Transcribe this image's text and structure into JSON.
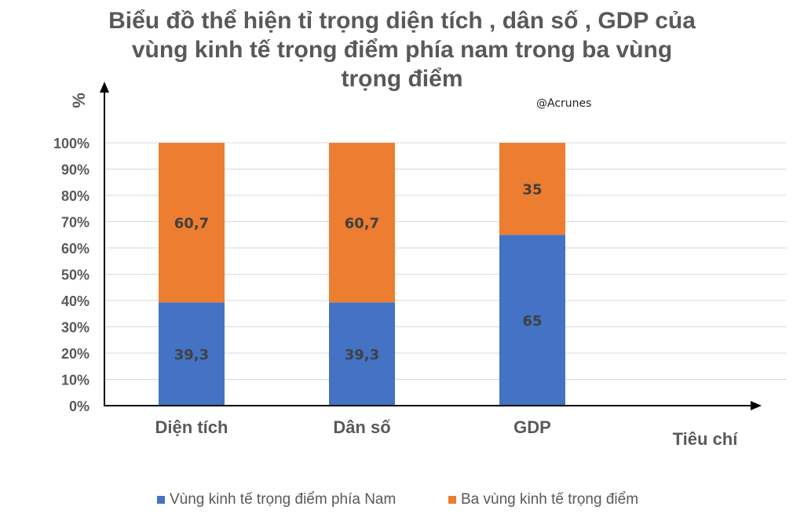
{
  "title": {
    "line1": "Biểu đồ thể hiện tỉ trọng diện tích , dân số , GDP của",
    "line2": "vùng kinh tế trọng điểm phía nam trong ba vùng",
    "line3": "trọng điểm"
  },
  "watermark": "@Acrunes",
  "chart_data": {
    "type": "bar",
    "stacked": true,
    "categories": [
      "Diện tích",
      "Dân số",
      "GDP"
    ],
    "series": [
      {
        "name": "Vùng kinh tế trọng điểm phía Nam",
        "values": [
          39.3,
          39.3,
          65
        ],
        "labels": [
          "39,3",
          "39,3",
          "65"
        ],
        "color": "#4472C4"
      },
      {
        "name": "Ba vùng kinh tế trọng điểm",
        "values": [
          60.7,
          60.7,
          35
        ],
        "labels": [
          "60,7",
          "60,7",
          "35"
        ],
        "color": "#ED7D31"
      }
    ],
    "ylabel": "%",
    "xlabel": "Tiêu chí",
    "ylim": [
      0,
      100
    ],
    "yticks": [
      "0%",
      "10%",
      "20%",
      "30%",
      "40%",
      "50%",
      "60%",
      "70%",
      "80%",
      "90%",
      "100%"
    ],
    "grid": true,
    "legend": "bottom"
  }
}
